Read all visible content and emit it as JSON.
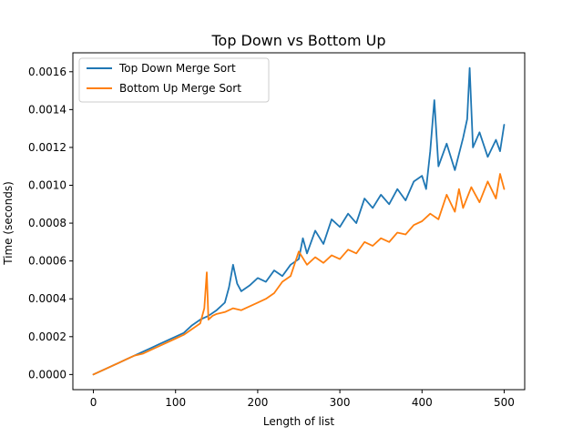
{
  "chart_data": {
    "type": "line",
    "title": "Top Down vs Bottom Up",
    "xlabel": "Length of list",
    "ylabel": "Time (seconds)",
    "xlim": [
      -25,
      525
    ],
    "ylim": [
      -8e-05,
      0.0017
    ],
    "xticks": [
      0,
      100,
      200,
      300,
      400,
      500
    ],
    "xtick_labels": [
      "0",
      "100",
      "200",
      "300",
      "400",
      "500"
    ],
    "yticks": [
      0,
      0.0002,
      0.0004,
      0.0006,
      0.0008,
      0.001,
      0.0012,
      0.0014,
      0.0016
    ],
    "ytick_labels": [
      "0.0000",
      "0.0002",
      "0.0004",
      "0.0006",
      "0.0008",
      "0.0010",
      "0.0012",
      "0.0014",
      "0.0016"
    ],
    "grid": false,
    "legend_position": "upper-left",
    "series": [
      {
        "name": "Top Down Merge Sort",
        "color": "#1f77b4",
        "x": [
          0,
          10,
          20,
          30,
          40,
          50,
          60,
          70,
          80,
          90,
          100,
          110,
          120,
          130,
          140,
          150,
          160,
          165,
          170,
          175,
          180,
          190,
          200,
          210,
          220,
          230,
          240,
          250,
          255,
          260,
          270,
          280,
          290,
          300,
          310,
          320,
          330,
          340,
          350,
          360,
          370,
          380,
          390,
          400,
          405,
          410,
          415,
          420,
          430,
          440,
          450,
          455,
          458,
          462,
          470,
          480,
          490,
          495,
          500
        ],
        "y": [
          0.0,
          2e-05,
          4e-05,
          6e-05,
          8e-05,
          0.0001,
          0.00012,
          0.00014,
          0.00016,
          0.00018,
          0.0002,
          0.00022,
          0.00026,
          0.00029,
          0.00031,
          0.00034,
          0.00038,
          0.00046,
          0.00058,
          0.00048,
          0.00044,
          0.00047,
          0.00051,
          0.00049,
          0.00055,
          0.00052,
          0.00058,
          0.00061,
          0.00072,
          0.00064,
          0.00076,
          0.00069,
          0.00082,
          0.00078,
          0.00085,
          0.0008,
          0.00093,
          0.00088,
          0.00095,
          0.0009,
          0.00098,
          0.00092,
          0.00102,
          0.00105,
          0.00098,
          0.00118,
          0.00145,
          0.0011,
          0.00122,
          0.00108,
          0.00125,
          0.00135,
          0.00162,
          0.0012,
          0.00128,
          0.00115,
          0.00124,
          0.00118,
          0.00132
        ]
      },
      {
        "name": "Bottom Up Merge Sort",
        "color": "#ff7f0e",
        "x": [
          0,
          10,
          20,
          30,
          40,
          50,
          60,
          70,
          80,
          90,
          100,
          110,
          120,
          130,
          135,
          138,
          140,
          145,
          150,
          160,
          170,
          180,
          190,
          200,
          210,
          220,
          230,
          240,
          250,
          260,
          270,
          280,
          290,
          300,
          310,
          320,
          330,
          340,
          350,
          360,
          370,
          380,
          390,
          400,
          410,
          420,
          430,
          440,
          445,
          450,
          460,
          470,
          480,
          490,
          495,
          500
        ],
        "y": [
          0.0,
          2e-05,
          4e-05,
          6e-05,
          8e-05,
          0.0001,
          0.00011,
          0.00013,
          0.00015,
          0.00017,
          0.00019,
          0.00021,
          0.00024,
          0.00027,
          0.00035,
          0.00054,
          0.00029,
          0.00031,
          0.00032,
          0.00033,
          0.00035,
          0.00034,
          0.00036,
          0.00038,
          0.0004,
          0.00043,
          0.00049,
          0.00052,
          0.00065,
          0.00058,
          0.00062,
          0.00059,
          0.00063,
          0.00061,
          0.00066,
          0.00064,
          0.0007,
          0.00068,
          0.00072,
          0.0007,
          0.00075,
          0.00074,
          0.00079,
          0.00081,
          0.00085,
          0.00082,
          0.00095,
          0.00086,
          0.00098,
          0.00088,
          0.00099,
          0.00091,
          0.00102,
          0.00093,
          0.00106,
          0.00098
        ]
      }
    ]
  }
}
